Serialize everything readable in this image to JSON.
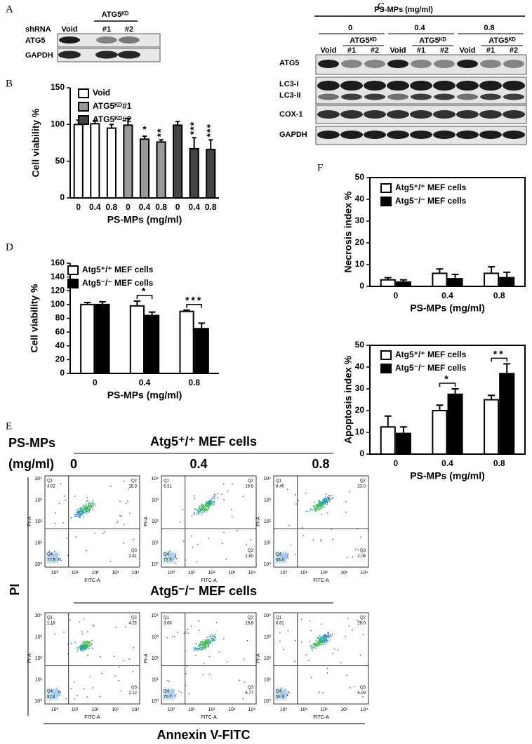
{
  "panel_labels": {
    "a": "A",
    "b": "B",
    "c": "C",
    "d": "D",
    "e": "E",
    "f": "F"
  },
  "blot_a": {
    "row_header": "shRNA",
    "group": "ATG5ᴷᴰ",
    "lanes": [
      "Void",
      "#1",
      "#2"
    ],
    "rows": [
      "ATG5",
      "GAPDH"
    ]
  },
  "blot_c": {
    "title": "PS-MPs (mg/ml)",
    "doses": [
      "0",
      "0.4",
      "0.8"
    ],
    "group": "ATG5ᴷᴰ",
    "lanes": [
      "Void",
      "#1",
      "#2"
    ],
    "rows": [
      "ATG5",
      "LC3-I",
      "LC3-II",
      "COX-1",
      "GAPDH"
    ]
  },
  "chart_data": [
    {
      "type": "bar",
      "y_label": "Cell viability %",
      "x_label": "PS-MPs (mg/ml)",
      "categories": [
        "0",
        "0.4",
        "0.8",
        "0",
        "0.4",
        "0.8",
        "0",
        "0.4",
        "0.8"
      ],
      "series": [
        {
          "name": "Void",
          "color": "#ffffff",
          "values": [
            100,
            101,
            95,
            null,
            null,
            null,
            null,
            null,
            null
          ],
          "errors": [
            6,
            4,
            5,
            null,
            null,
            null,
            null,
            null,
            null
          ]
        },
        {
          "name": "ATG5ᴷᴰ#1",
          "color": "#9a9a9a",
          "values": [
            null,
            null,
            null,
            99,
            80,
            76,
            null,
            null,
            null
          ],
          "errors": [
            null,
            null,
            null,
            9,
            4,
            3,
            null,
            null,
            null
          ]
        },
        {
          "name": "ATG5ᴷᴰ#2",
          "color": "#444444",
          "values": [
            null,
            null,
            null,
            null,
            null,
            null,
            99,
            67,
            66
          ],
          "errors": [
            null,
            null,
            null,
            null,
            null,
            null,
            5,
            15,
            13
          ]
        }
      ],
      "ylim": [
        0,
        150
      ],
      "yticks": [
        0,
        50,
        100,
        150
      ],
      "annotations": [
        "*",
        "**",
        "***",
        "***"
      ]
    },
    {
      "type": "bar",
      "y_label": "Cell viability %",
      "x_label": "PS-MPs (mg/ml)",
      "categories": [
        "0",
        "0.4",
        "0.8"
      ],
      "series": [
        {
          "name": "Atg5⁺/⁺ MEF cells",
          "color": "#ffffff",
          "values": [
            100,
            98,
            90
          ],
          "errors": [
            3,
            7,
            2
          ]
        },
        {
          "name": "Atg5⁻/⁻ MEF cells",
          "color": "#000000",
          "values": [
            100,
            84,
            65
          ],
          "errors": [
            4,
            5,
            8
          ]
        }
      ],
      "ylim": [
        0,
        160
      ],
      "yticks": [
        0,
        20,
        40,
        60,
        80,
        100,
        120,
        140,
        160
      ],
      "annotations": [
        "*",
        "***"
      ]
    },
    {
      "type": "bar",
      "y_label": "Necrosis index %",
      "x_label": "PS-MPs (mg/ml)",
      "categories": [
        "0",
        "0.4",
        "0.8"
      ],
      "series": [
        {
          "name": "Atg5⁺/⁺ MEF cells",
          "color": "#ffffff",
          "values": [
            3,
            6,
            6
          ],
          "errors": [
            1,
            2,
            3
          ]
        },
        {
          "name": "Atg5⁻/⁻ MEF cells",
          "color": "#000000",
          "values": [
            2,
            3.5,
            4
          ],
          "errors": [
            1,
            2,
            2.5
          ]
        }
      ],
      "ylim": [
        0,
        50
      ],
      "yticks": [
        0,
        10,
        20,
        30,
        40,
        50
      ]
    },
    {
      "type": "bar",
      "y_label": "Apoptosis index %",
      "x_label": "PS-MPs (mg/ml)",
      "categories": [
        "0",
        "0.4",
        "0.8"
      ],
      "series": [
        {
          "name": "Atg5⁺/⁺ MEF cells",
          "color": "#ffffff",
          "values": [
            12.5,
            20,
            25
          ],
          "errors": [
            5,
            2.5,
            2
          ]
        },
        {
          "name": "Atg5⁻/⁻ MEF cells",
          "color": "#000000",
          "values": [
            9.5,
            27.5,
            37
          ],
          "errors": [
            3,
            2.5,
            4.5
          ]
        }
      ],
      "ylim": [
        0,
        50
      ],
      "yticks": [
        0,
        10,
        20,
        30,
        40,
        50
      ],
      "annotations": [
        "*",
        "**"
      ]
    }
  ],
  "flow": {
    "dose_header": [
      "PS-MPs",
      "(mg/ml)"
    ],
    "doses": [
      "0",
      "0.4",
      "0.8"
    ],
    "y_label": "PI",
    "x_label": "Annexin V-FITC",
    "axis_x": "FITC-A",
    "axis_y": "PI-A",
    "ticks": [
      "10⁰",
      "10¹",
      "10²",
      "10³",
      "10⁴"
    ],
    "quadrants": [
      "Q1",
      "Q2",
      "Q3",
      "Q4"
    ],
    "rows": [
      {
        "title": "Atg5⁺/⁺ MEF cells",
        "plots": [
          [
            "4.02",
            "15.3",
            "2.81",
            "77.8"
          ],
          [
            "6.31",
            "19.6",
            "1.80",
            "72.3"
          ],
          [
            "8.45",
            "23.0",
            "2.08",
            "66.6"
          ]
        ]
      },
      {
        "title": "Atg5⁻/⁻ MEF cells",
        "plots": [
          [
            "1.18",
            "4.25",
            "2.12",
            "92.4"
          ],
          [
            "3.66",
            "19.8",
            "5.77",
            "70.7"
          ],
          [
            "6.61",
            "29.0",
            "5.09",
            "59.3"
          ]
        ]
      }
    ]
  }
}
